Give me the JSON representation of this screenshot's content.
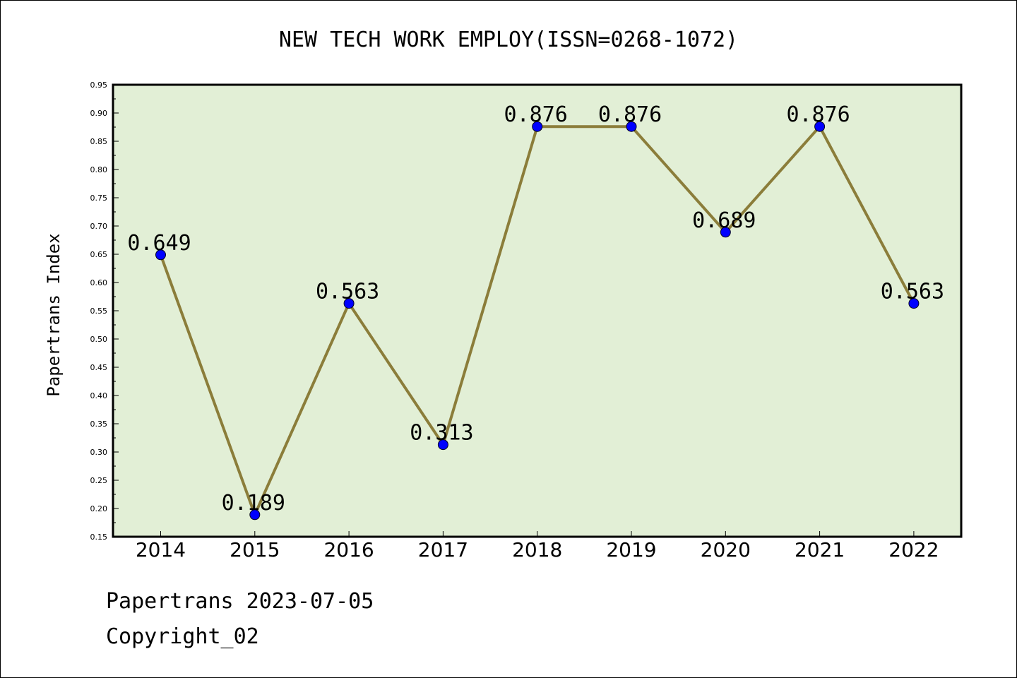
{
  "chart_data": {
    "type": "line",
    "title": "NEW TECH WORK EMPLOY(ISSN=0268-1072)",
    "xlabel": "",
    "ylabel": "Papertrans Index",
    "categories": [
      "2014",
      "2015",
      "2016",
      "2017",
      "2018",
      "2019",
      "2020",
      "2021",
      "2022"
    ],
    "values": [
      0.649,
      0.189,
      0.563,
      0.313,
      0.876,
      0.876,
      0.689,
      0.876,
      0.563
    ],
    "data_labels": [
      "0.649",
      "0.189",
      "0.563",
      "0.313",
      "0.876",
      "0.876",
      "0.689",
      "0.876",
      "0.563"
    ],
    "ylim": [
      0.15,
      0.95
    ],
    "yticks": [
      "0.15",
      "0.20",
      "0.25",
      "0.30",
      "0.35",
      "0.40",
      "0.45",
      "0.50",
      "0.55",
      "0.60",
      "0.65",
      "0.70",
      "0.75",
      "0.80",
      "0.85",
      "0.90",
      "0.95"
    ],
    "grid": false,
    "colors": {
      "plot_background": "#e2efd6",
      "line": "#8b7d3a",
      "marker": "#0000ff"
    }
  },
  "footer": {
    "line1": "Papertrans 2023-07-05",
    "line2": "Copyright_02"
  }
}
